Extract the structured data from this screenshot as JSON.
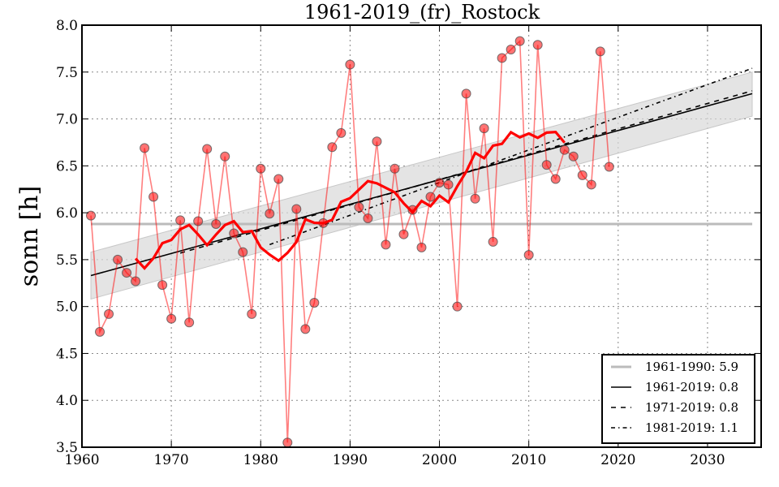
{
  "chart_data": {
    "type": "line",
    "title": "1961-2019_(fr)_Rostock",
    "xlabel": "",
    "ylabel": "sonn [h]",
    "xlim": [
      1960,
      2036
    ],
    "ylim": [
      3.5,
      8.0
    ],
    "grid": true,
    "x_ticks": [
      "1960",
      "1970",
      "1980",
      "1990",
      "2000",
      "2010",
      "2020",
      "2030"
    ],
    "y_ticks": [
      "3.5",
      "4.0",
      "4.5",
      "5.0",
      "5.5",
      "6.0",
      "6.5",
      "7.0",
      "7.5",
      "8.0"
    ],
    "legend_position": "bottom-right",
    "legend": [
      {
        "label": "1961-1990: 5.9",
        "style": "grey-solid"
      },
      {
        "label": "1961-2019: 0.8",
        "style": "black-solid"
      },
      {
        "label": "1971-2019: 0.8",
        "style": "black-dashed"
      },
      {
        "label": "1981-2019: 1.1",
        "style": "black-dashdot"
      }
    ],
    "series": [
      {
        "name": "annual",
        "color": "#ff0000",
        "x": [
          1961,
          1962,
          1963,
          1964,
          1965,
          1966,
          1967,
          1968,
          1969,
          1970,
          1971,
          1972,
          1973,
          1974,
          1975,
          1976,
          1977,
          1978,
          1979,
          1980,
          1981,
          1982,
          1983,
          1984,
          1985,
          1986,
          1987,
          1988,
          1989,
          1990,
          1991,
          1992,
          1993,
          1994,
          1995,
          1996,
          1997,
          1998,
          1999,
          2000,
          2001,
          2002,
          2003,
          2004,
          2005,
          2006,
          2007,
          2008,
          2009,
          2010,
          2011,
          2012,
          2013,
          2014,
          2015,
          2016,
          2017,
          2018,
          2019
        ],
        "values": [
          5.97,
          4.73,
          4.92,
          5.5,
          5.36,
          5.27,
          6.69,
          6.17,
          5.23,
          4.87,
          5.92,
          4.83,
          5.91,
          6.68,
          5.88,
          6.6,
          5.78,
          5.58,
          4.92,
          6.47,
          5.99,
          6.36,
          3.55,
          6.04,
          4.76,
          5.04,
          5.89,
          6.7,
          6.85,
          7.58,
          6.06,
          5.94,
          6.76,
          5.66,
          6.47,
          5.77,
          6.03,
          5.63,
          6.17,
          6.32,
          6.3,
          5.0,
          7.27,
          6.15,
          6.9,
          5.69,
          7.65,
          7.74,
          7.83,
          5.55,
          7.79,
          6.51,
          6.36,
          6.67,
          6.6,
          6.4,
          6.3,
          7.72,
          6.49
        ]
      },
      {
        "name": "running-mean-11yr",
        "color": "#ff0000",
        "window": 11
      },
      {
        "name": "1961-1990 mean",
        "color": "#bbbbbb",
        "value": 5.88,
        "x_range": [
          1961,
          2035
        ]
      },
      {
        "name": "1961-2019 trend",
        "color": "#000000",
        "x_range": [
          1961,
          2035
        ],
        "y_range": [
          5.33,
          7.27
        ],
        "band_low": [
          5.08,
          7.03
        ],
        "band_high": [
          5.58,
          7.5
        ]
      },
      {
        "name": "1971-2019 trend",
        "color": "#000000",
        "x_range": [
          1971,
          2035
        ],
        "y_range": [
          5.57,
          7.3
        ]
      },
      {
        "name": "1981-2019 trend",
        "color": "#000000",
        "x_range": [
          1981,
          2035
        ],
        "y_range": [
          5.66,
          7.54
        ]
      }
    ]
  }
}
